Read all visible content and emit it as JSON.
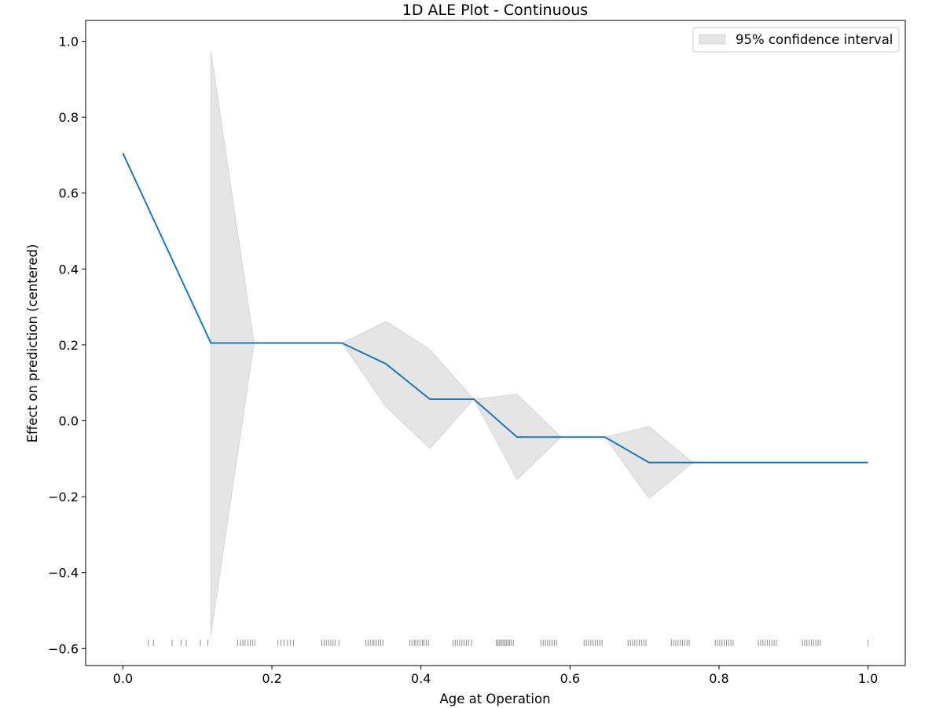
{
  "chart_data": {
    "type": "line",
    "title": "1D ALE Plot - Continuous",
    "xlabel": "Age at Operation",
    "ylabel": "Effect on prediction (centered)",
    "xlim": [
      -0.05,
      1.05
    ],
    "ylim": [
      -0.645,
      1.055
    ],
    "xticks": [
      0.0,
      0.2,
      0.4,
      0.6,
      0.8,
      1.0
    ],
    "xtick_labels": [
      "0.0",
      "0.2",
      "0.4",
      "0.6",
      "0.8",
      "1.0"
    ],
    "yticks": [
      -0.6,
      -0.4,
      -0.2,
      0.0,
      0.2,
      0.4,
      0.6,
      0.8,
      1.0
    ],
    "ytick_labels": [
      "−0.6",
      "−0.4",
      "−0.2",
      "0.0",
      "0.2",
      "0.4",
      "0.6",
      "0.8",
      "1.0"
    ],
    "grid": false,
    "legend_placement": "top-right",
    "line_color": "#1f77b4",
    "band_color": "#bfbfbf",
    "rug_color": "#333333",
    "series": [
      {
        "x": [
          0.0,
          0.118,
          0.176,
          0.294,
          0.353,
          0.412,
          0.471,
          0.529,
          0.588,
          0.647,
          0.706,
          0.765,
          0.824,
          0.882,
          0.941,
          1.0
        ],
        "y": [
          0.705,
          0.205,
          0.205,
          0.205,
          0.15,
          0.057,
          0.057,
          -0.043,
          -0.043,
          -0.043,
          -0.11,
          -0.11,
          -0.11,
          -0.11,
          -0.11,
          -0.11
        ]
      }
    ],
    "confidence_band": {
      "name": "95% confidence interval",
      "x": [
        0.118,
        0.176,
        0.294,
        0.353,
        0.412,
        0.471,
        0.529,
        0.588,
        0.647,
        0.706,
        0.765
      ],
      "lower": [
        -0.565,
        0.205,
        0.205,
        0.037,
        -0.073,
        0.057,
        -0.155,
        -0.043,
        -0.043,
        -0.205,
        -0.11
      ],
      "upper": [
        0.975,
        0.205,
        0.205,
        0.262,
        0.188,
        0.057,
        0.07,
        -0.043,
        -0.043,
        -0.015,
        -0.11
      ]
    },
    "rug_y": -0.585,
    "rug_x": [
      0.034,
      0.041,
      0.066,
      0.078,
      0.085,
      0.104,
      0.114,
      0.154,
      0.158,
      0.161,
      0.164,
      0.168,
      0.171,
      0.174,
      0.177,
      0.208,
      0.212,
      0.216,
      0.221,
      0.225,
      0.229,
      0.267,
      0.27,
      0.273,
      0.276,
      0.279,
      0.282,
      0.285,
      0.29,
      0.326,
      0.329,
      0.332,
      0.335,
      0.337,
      0.34,
      0.343,
      0.346,
      0.349,
      0.385,
      0.388,
      0.391,
      0.393,
      0.396,
      0.399,
      0.402,
      0.404,
      0.407,
      0.41,
      0.443,
      0.446,
      0.449,
      0.452,
      0.455,
      0.458,
      0.461,
      0.464,
      0.468,
      0.501,
      0.503,
      0.505,
      0.507,
      0.509,
      0.511,
      0.513,
      0.515,
      0.517,
      0.519,
      0.521,
      0.524,
      0.561,
      0.564,
      0.567,
      0.57,
      0.573,
      0.576,
      0.579,
      0.582,
      0.619,
      0.622,
      0.625,
      0.628,
      0.631,
      0.634,
      0.637,
      0.64,
      0.643,
      0.678,
      0.681,
      0.684,
      0.687,
      0.69,
      0.693,
      0.696,
      0.699,
      0.702,
      0.736,
      0.739,
      0.742,
      0.745,
      0.748,
      0.751,
      0.754,
      0.757,
      0.76,
      0.795,
      0.798,
      0.801,
      0.804,
      0.807,
      0.81,
      0.813,
      0.816,
      0.819,
      0.853,
      0.856,
      0.859,
      0.862,
      0.865,
      0.868,
      0.871,
      0.874,
      0.877,
      0.912,
      0.915,
      0.918,
      0.921,
      0.924,
      0.927,
      0.93,
      0.933,
      0.936,
      1.0
    ]
  }
}
